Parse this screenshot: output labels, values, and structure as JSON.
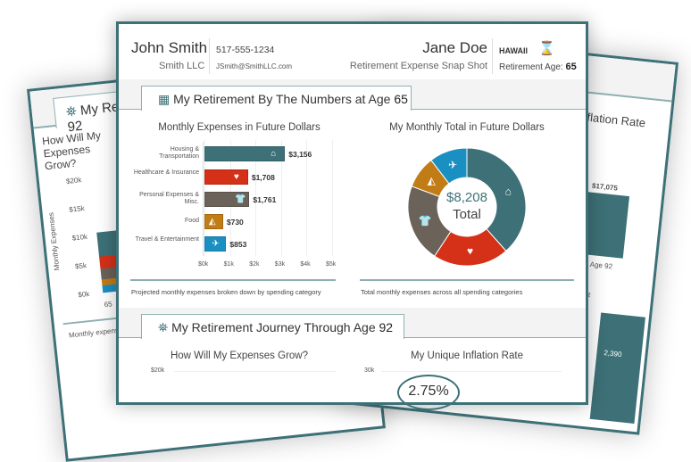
{
  "header": {
    "advisor_name": "John Smith",
    "advisor_company": "Smith LLC",
    "advisor_phone": "517-555-1234",
    "advisor_email": "JSmith@SmithLLC.com",
    "client_name": "Jane Doe",
    "report_title": "Retirement Expense Snap Shot",
    "state": "HAWAII",
    "retirement_age_label": "Retirement Age:",
    "retirement_age": "65"
  },
  "section1": {
    "title": "My Retirement By The Numbers at Age",
    "age": "65",
    "icon": "calculator-icon"
  },
  "bar_chart": {
    "title": "Monthly Expenses in Future Dollars",
    "caption": "Projected monthly expenses broken down by spending category",
    "ticks": [
      "$0k",
      "$1k",
      "$2k",
      "$3k",
      "$4k",
      "$5k"
    ]
  },
  "donut": {
    "title": "My Monthly Total in Future Dollars",
    "total": "$8,208",
    "total_label": "Total",
    "caption": "Total monthly expenses across all spending categories"
  },
  "chart_data": {
    "type": "bar",
    "categories": [
      "Housing & Transportation",
      "Healthcare & Insurance",
      "Personal Expenses & Misc.",
      "Food",
      "Travel & Entertainment"
    ],
    "values": [
      3156,
      1708,
      1761,
      730,
      853
    ],
    "value_labels": [
      "$3,156",
      "$1,708",
      "$1,761",
      "$730",
      "$853"
    ],
    "colors": [
      "#3d7177",
      "#d53018",
      "#6b6259",
      "#c27c16",
      "#1a8fc2"
    ],
    "icons": [
      "home-icon",
      "heart-pulse-icon",
      "shirt-icon",
      "pizza-icon",
      "plane-icon"
    ],
    "xlim": [
      0,
      5000
    ]
  },
  "section2": {
    "title": "My Retirement Journey Through Age",
    "age": "92",
    "icon": "map-pin-icon",
    "left_title": "How Will My Expenses Grow?",
    "right_title": "My Unique Inflation Rate",
    "left_tick": "$20k",
    "right_tick": "30k",
    "inflation_rate": "2.75%"
  },
  "back_left": {
    "tab": "My Retirement Journey Through Age 92",
    "title": "How Will My Expenses Grow?",
    "ylabel": "Monthly Expenses",
    "ticks": [
      "$20k",
      "$15k",
      "$10k",
      "$5k",
      "$0k"
    ],
    "x_first": "65",
    "caption": "Monthly expenses"
  },
  "back_right": {
    "title": "My Unique Inflation Rate",
    "bar_value": "$17,075",
    "bar_label": "Age 92",
    "caption": "retirement",
    "small_value": "2,390"
  }
}
